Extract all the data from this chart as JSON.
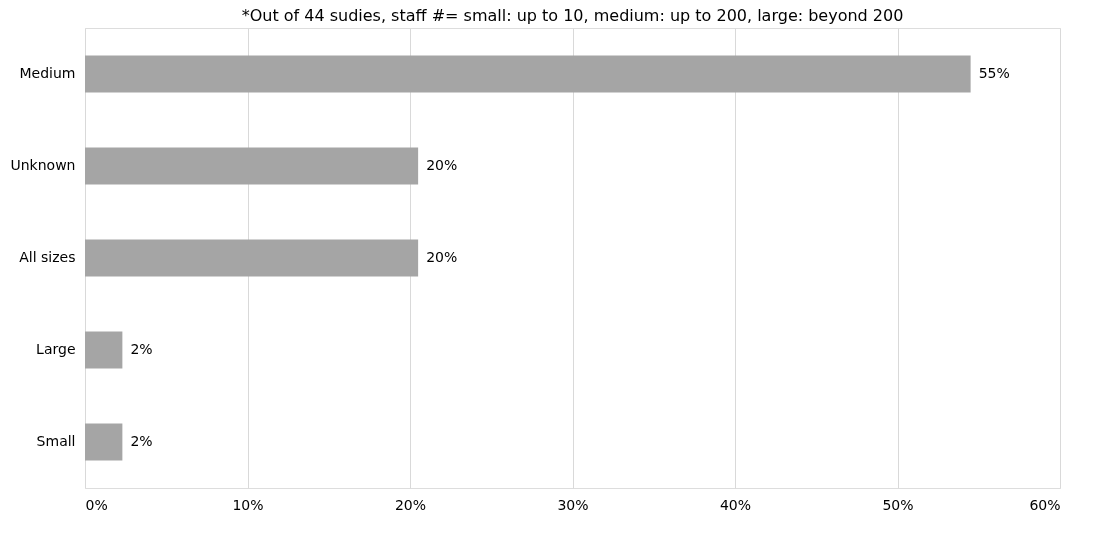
{
  "chart_data": {
    "type": "bar",
    "orientation": "horizontal",
    "title": "*Out of 44 sudies, staff #= small: up to 10, medium: up  to 200, large: beyond 200",
    "categories": [
      "Medium",
      "Unknown",
      "All sizes",
      "Large",
      "Small"
    ],
    "values": [
      54.5,
      20.5,
      20.5,
      2.3,
      2.3
    ],
    "value_labels": [
      "55%",
      "20%",
      "20%",
      "2%",
      "2%"
    ],
    "color": "#a5a5a5",
    "xlim": [
      0,
      60
    ],
    "xticks": [
      {
        "value": 0,
        "label": "0%"
      },
      {
        "value": 10,
        "label": "10%"
      },
      {
        "value": 20,
        "label": "20%"
      },
      {
        "value": 30,
        "label": "30%"
      },
      {
        "value": 40,
        "label": "40%"
      },
      {
        "value": 50,
        "label": "50%"
      },
      {
        "value": 60,
        "label": "60%"
      }
    ],
    "grid": "x"
  }
}
